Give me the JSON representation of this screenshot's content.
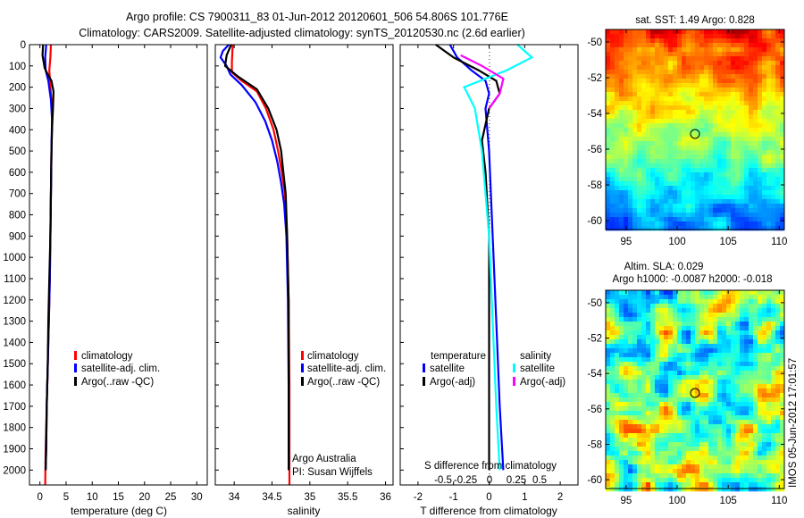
{
  "header": {
    "line1": "Argo profile: CS 7900311_83 01-Jun-2012 20120601_506 54.806S 101.776E",
    "line2": "Climatology: CARS2009. Satellite-adjusted climatology: synTS_20120530.nc (2.6d earlier)"
  },
  "colors": {
    "climatology": "#ff0000",
    "satellite": "#0000ff",
    "argo": "#000000",
    "sal_satellite": "#00ffff",
    "sal_argo": "#ff00ff"
  },
  "depth_axis": {
    "ticks": [
      "0",
      "100",
      "200",
      "300",
      "400",
      "500",
      "600",
      "700",
      "800",
      "900",
      "1000",
      "1100",
      "1200",
      "1300",
      "1400",
      "1500",
      "1600",
      "1700",
      "1800",
      "1900",
      "2000"
    ],
    "ylim": [
      0,
      2070
    ]
  },
  "temp_panel": {
    "xlabel": "temperature (deg C)",
    "xticks": [
      "0",
      "5",
      "10",
      "15",
      "20",
      "25",
      "30"
    ],
    "xlim": [
      -2,
      32
    ],
    "legend": [
      "climatology",
      "satellite-adj. clim.",
      "Argo(..raw -QC)"
    ]
  },
  "sal_panel": {
    "xlabel": "salinity",
    "xticks": [
      "34",
      "34.5",
      "35",
      "35.5",
      "36"
    ],
    "xlim": [
      33.75,
      36.1
    ],
    "legend": [
      "climatology",
      "satellite-adj. clim.",
      "Argo(..raw -QC)"
    ],
    "note1": "Argo Australia",
    "note2": "PI: Susan Wijffels"
  },
  "diff_panel": {
    "xlabel": "T difference from climatology",
    "top_label": "S difference from climatology",
    "xticks": [
      "-2",
      "-1",
      "0",
      "1",
      "2"
    ],
    "xlim": [
      -2.5,
      2.5
    ],
    "sticks": [
      "-0.5",
      "-0.25",
      "0",
      "0.25",
      "0.5"
    ],
    "legend_temp_title": "temperature",
    "legend_sal_title": "salinity",
    "legend_sat": "satellite",
    "legend_argo": "Argo(-adj)"
  },
  "map_top": {
    "title": "sat. SST: 1.49 Argo: 0.828",
    "yticks": [
      "-50",
      "-52",
      "-54",
      "-56",
      "-58",
      "-60"
    ],
    "xticks": [
      "95",
      "100",
      "105",
      "110"
    ]
  },
  "map_bottom": {
    "title1": "Altim. SLA: 0.029",
    "title2": "Argo h1000: -0.0087 h2000: -0.018",
    "yticks": [
      "-50",
      "-52",
      "-54",
      "-56",
      "-58",
      "-60"
    ],
    "xticks": [
      "95",
      "100",
      "105",
      "110"
    ],
    "stamp": "IMOS 05-Jun-2012 17:01:57"
  },
  "chart_data": [
    {
      "type": "line",
      "title": "",
      "xlabel": "temperature (deg C)",
      "ylabel": "",
      "xlim": [
        -2,
        32
      ],
      "ylim": [
        2070,
        0
      ],
      "series": [
        {
          "name": "climatology",
          "color": "#ff0000",
          "points": [
            [
              2.1,
              0
            ],
            [
              2.0,
              60
            ],
            [
              1.8,
              120
            ],
            [
              2.0,
              200
            ],
            [
              2.3,
              300
            ],
            [
              2.3,
              400
            ],
            [
              2.2,
              500
            ],
            [
              2.1,
              700
            ],
            [
              2.0,
              900
            ],
            [
              1.9,
              1100
            ],
            [
              1.7,
              1300
            ],
            [
              1.5,
              1500
            ],
            [
              1.3,
              1700
            ],
            [
              1.1,
              1900
            ],
            [
              1.0,
              2070
            ]
          ]
        },
        {
          "name": "satellite-adj. clim.",
          "color": "#0000ff",
          "points": [
            [
              1.2,
              0
            ],
            [
              1.0,
              60
            ],
            [
              1.1,
              120
            ],
            [
              1.6,
              170
            ],
            [
              2.1,
              260
            ],
            [
              2.3,
              350
            ],
            [
              2.2,
              500
            ],
            [
              2.1,
              700
            ],
            [
              2.0,
              900
            ],
            [
              1.9,
              1100
            ],
            [
              1.7,
              1300
            ],
            [
              1.5,
              1500
            ],
            [
              1.3,
              1700
            ],
            [
              1.2,
              1900
            ],
            [
              1.1,
              2000
            ]
          ]
        },
        {
          "name": "Argo(..raw -QC)",
          "color": "#000000",
          "points": [
            [
              0.6,
              0
            ],
            [
              0.5,
              50
            ],
            [
              0.9,
              110
            ],
            [
              1.5,
              140
            ],
            [
              2.2,
              170
            ],
            [
              2.6,
              220
            ],
            [
              2.5,
              300
            ],
            [
              2.3,
              400
            ],
            [
              2.2,
              500
            ],
            [
              2.1,
              700
            ],
            [
              2.0,
              900
            ],
            [
              1.8,
              1100
            ],
            [
              1.6,
              1300
            ],
            [
              1.5,
              1500
            ],
            [
              1.3,
              1700
            ],
            [
              1.2,
              1900
            ],
            [
              1.1,
              2000
            ]
          ]
        }
      ]
    },
    {
      "type": "line",
      "title": "",
      "xlabel": "salinity",
      "ylabel": "",
      "xlim": [
        33.75,
        36.1
      ],
      "ylim": [
        2070,
        0
      ],
      "series": [
        {
          "name": "climatology",
          "color": "#ff0000",
          "points": [
            [
              33.98,
              0
            ],
            [
              33.97,
              80
            ],
            [
              33.97,
              130
            ],
            [
              34.1,
              170
            ],
            [
              34.3,
              220
            ],
            [
              34.42,
              300
            ],
            [
              34.52,
              400
            ],
            [
              34.58,
              500
            ],
            [
              34.63,
              600
            ],
            [
              34.67,
              700
            ],
            [
              34.7,
              900
            ],
            [
              34.72,
              1200
            ],
            [
              34.73,
              1600
            ],
            [
              34.73,
              2070
            ]
          ]
        },
        {
          "name": "satellite-adj. clim.",
          "color": "#0000ff",
          "points": [
            [
              33.93,
              0
            ],
            [
              33.85,
              30
            ],
            [
              33.82,
              60
            ],
            [
              33.9,
              100
            ],
            [
              33.95,
              140
            ],
            [
              34.1,
              190
            ],
            [
              34.28,
              270
            ],
            [
              34.41,
              360
            ],
            [
              34.5,
              450
            ],
            [
              34.57,
              550
            ],
            [
              34.62,
              650
            ],
            [
              34.66,
              750
            ],
            [
              34.69,
              900
            ],
            [
              34.71,
              1200
            ],
            [
              34.72,
              1600
            ],
            [
              34.72,
              2000
            ]
          ]
        },
        {
          "name": "Argo(..raw -QC)",
          "color": "#000000",
          "points": [
            [
              33.96,
              0
            ],
            [
              33.9,
              50
            ],
            [
              33.88,
              100
            ],
            [
              34.05,
              150
            ],
            [
              34.3,
              210
            ],
            [
              34.45,
              300
            ],
            [
              34.56,
              400
            ],
            [
              34.62,
              500
            ],
            [
              34.65,
              600
            ],
            [
              34.68,
              700
            ],
            [
              34.7,
              900
            ],
            [
              34.72,
              1200
            ],
            [
              34.72,
              1600
            ],
            [
              34.72,
              2000
            ]
          ]
        }
      ]
    },
    {
      "type": "line",
      "title": "",
      "xlabel": "T difference from climatology",
      "ylabel": "",
      "xlim": [
        -2.5,
        2.5
      ],
      "ylim": [
        2070,
        0
      ],
      "series": [
        {
          "name": "satellite",
          "color": "#0000ff",
          "points": [
            [
              -1.1,
              0
            ],
            [
              -0.9,
              60
            ],
            [
              -0.5,
              120
            ],
            [
              -0.1,
              170
            ],
            [
              0.0,
              230
            ],
            [
              -0.1,
              300
            ],
            [
              0.0,
              500
            ],
            [
              0.1,
              900
            ],
            [
              0.2,
              1300
            ],
            [
              0.3,
              1700
            ],
            [
              0.4,
              2000
            ]
          ]
        },
        {
          "name": "Argo(-adj)",
          "color": "#000000",
          "points": [
            [
              -1.5,
              0
            ],
            [
              -1.0,
              60
            ],
            [
              -0.3,
              120
            ],
            [
              0.2,
              170
            ],
            [
              0.3,
              230
            ],
            [
              0.0,
              300
            ],
            [
              -0.2,
              450
            ],
            [
              -0.1,
              600
            ],
            [
              0.0,
              900
            ],
            [
              0.0,
              1300
            ],
            [
              0.0,
              1700
            ],
            [
              0.0,
              2000
            ]
          ]
        },
        {
          "name": "satellite",
          "color": "#00ffff",
          "points": [
            [
              0.8,
              0
            ],
            [
              1.2,
              60
            ],
            [
              0.5,
              120
            ],
            [
              -0.7,
              200
            ],
            [
              -0.4,
              300
            ],
            [
              -0.2,
              500
            ],
            [
              -0.1,
              700
            ],
            [
              0.0,
              900
            ],
            [
              0.1,
              1300
            ],
            [
              0.2,
              1700
            ],
            [
              0.3,
              2000
            ]
          ]
        },
        {
          "name": "Argo(-adj)",
          "color": "#ff00ff",
          "points": [
            [
              -0.8,
              50
            ],
            [
              -0.2,
              100
            ],
            [
              0.4,
              160
            ],
            [
              0.3,
              230
            ],
            [
              0.0,
              300
            ]
          ]
        }
      ]
    }
  ]
}
